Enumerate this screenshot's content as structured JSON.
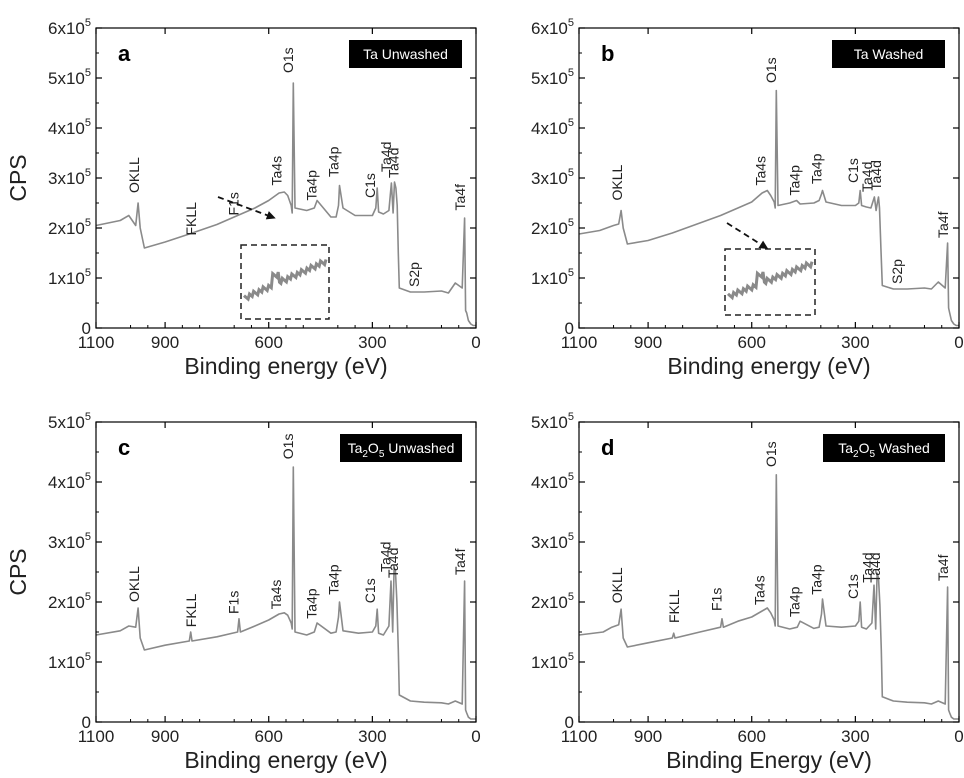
{
  "chart_data": [
    {
      "type": "line",
      "panel": "a",
      "badge": "Ta Unwashed",
      "xlabel": "Binding energy (eV)",
      "ylabel": "CPS",
      "xlim": [
        1100,
        0
      ],
      "ylim": [
        0,
        600000
      ],
      "x_ticks": [
        "1100",
        "900",
        "600",
        "300",
        "0"
      ],
      "x_tick_values": [
        1100,
        900,
        600,
        300,
        0
      ],
      "y_ticks": [
        {
          "m": "0",
          "e": ""
        },
        {
          "m": "1x10",
          "e": "5"
        },
        {
          "m": "2x10",
          "e": "5"
        },
        {
          "m": "3x10",
          "e": "5"
        },
        {
          "m": "4x10",
          "e": "5"
        },
        {
          "m": "5x10",
          "e": "5"
        },
        {
          "m": "6x10",
          "e": "5"
        }
      ],
      "y_tick_values": [
        0,
        100000,
        200000,
        300000,
        400000,
        500000,
        600000
      ],
      "series": [
        {
          "x": [
            1100,
            1030,
            1005,
            985,
            978,
            972,
            960,
            900,
            830,
            750,
            690,
            640,
            600,
            570,
            555,
            545,
            535,
            532,
            529,
            524,
            490,
            468,
            460,
            420,
            405,
            398,
            395,
            385,
            350,
            300,
            290,
            286,
            282,
            268,
            252,
            245,
            240,
            236,
            232,
            228,
            225,
            222,
            190,
            150,
            100,
            80,
            60,
            40,
            33,
            30,
            27,
            22,
            15,
            8,
            0
          ],
          "y": [
            205000,
            215000,
            225000,
            205000,
            250000,
            200000,
            160000,
            172000,
            188000,
            207000,
            225000,
            240000,
            255000,
            270000,
            272000,
            265000,
            245000,
            230000,
            490000,
            240000,
            235000,
            240000,
            255000,
            222000,
            222000,
            245000,
            285000,
            240000,
            225000,
            225000,
            240000,
            280000,
            232000,
            228000,
            235000,
            290000,
            230000,
            292000,
            280000,
            245000,
            150000,
            80000,
            72000,
            72000,
            74000,
            70000,
            90000,
            80000,
            220000,
            35000,
            30000,
            15000,
            8000,
            5000,
            5000
          ]
        }
      ],
      "annotations": [
        {
          "text": "OKLL",
          "x": 975,
          "y": 270000
        },
        {
          "text": "FKLL",
          "x": 810,
          "y": 185000
        },
        {
          "text": "F1s",
          "x": 688,
          "y": 225000
        },
        {
          "text": "Ta4s",
          "x": 563,
          "y": 285000
        },
        {
          "text": "O1s",
          "x": 530,
          "y": 510000
        },
        {
          "text": "Ta4p",
          "x": 462,
          "y": 255000
        },
        {
          "text": "Ta4p",
          "x": 398,
          "y": 302000
        },
        {
          "text": "C1s",
          "x": 292,
          "y": 260000
        },
        {
          "text": "Ta4d",
          "x": 246,
          "y": 312000
        },
        {
          "text": "Ta4d",
          "x": 224,
          "y": 300000
        },
        {
          "text": "S2p",
          "x": 165,
          "y": 82000
        },
        {
          "text": "Ta4f",
          "x": 32,
          "y": 235000
        }
      ]
    },
    {
      "type": "line",
      "panel": "b",
      "badge": "Ta Washed",
      "xlabel": "Binding energy (eV)",
      "ylabel": "",
      "xlim": [
        1100,
        0
      ],
      "ylim": [
        0,
        600000
      ],
      "x_ticks": [
        "1100",
        "900",
        "600",
        "300",
        "0"
      ],
      "x_tick_values": [
        1100,
        900,
        600,
        300,
        0
      ],
      "y_ticks": [
        {
          "m": "0",
          "e": ""
        },
        {
          "m": "1x10",
          "e": "5"
        },
        {
          "m": "2x10",
          "e": "5"
        },
        {
          "m": "3x10",
          "e": "5"
        },
        {
          "m": "4x10",
          "e": "5"
        },
        {
          "m": "5x10",
          "e": "5"
        },
        {
          "m": "6x10",
          "e": "5"
        }
      ],
      "y_tick_values": [
        0,
        100000,
        200000,
        300000,
        400000,
        500000,
        600000
      ],
      "series": [
        {
          "x": [
            1100,
            1040,
            1000,
            985,
            978,
            972,
            960,
            900,
            830,
            750,
            690,
            640,
            600,
            570,
            555,
            545,
            535,
            532,
            529,
            524,
            490,
            470,
            460,
            420,
            405,
            398,
            395,
            385,
            340,
            300,
            290,
            286,
            282,
            268,
            255,
            245,
            240,
            236,
            233,
            230,
            226,
            222,
            190,
            150,
            100,
            80,
            60,
            40,
            33,
            30,
            27,
            22,
            15,
            8,
            0
          ],
          "y": [
            188000,
            195000,
            205000,
            208000,
            235000,
            200000,
            168000,
            175000,
            190000,
            210000,
            225000,
            240000,
            252000,
            270000,
            275000,
            265000,
            252000,
            240000,
            475000,
            245000,
            250000,
            255000,
            248000,
            250000,
            255000,
            268000,
            275000,
            252000,
            245000,
            245000,
            250000,
            275000,
            245000,
            242000,
            240000,
            262000,
            235000,
            252000,
            262000,
            240000,
            160000,
            85000,
            78000,
            78000,
            80000,
            78000,
            92000,
            80000,
            170000,
            40000,
            30000,
            15000,
            8000,
            5000,
            5000
          ]
        }
      ],
      "annotations": [
        {
          "text": "OKLL",
          "x": 975,
          "y": 255000
        },
        {
          "text": "Ta4s",
          "x": 560,
          "y": 285000
        },
        {
          "text": "O1s",
          "x": 530,
          "y": 490000
        },
        {
          "text": "Ta4p",
          "x": 462,
          "y": 265000
        },
        {
          "text": "Ta4p",
          "x": 398,
          "y": 288000
        },
        {
          "text": "C1s",
          "x": 292,
          "y": 290000
        },
        {
          "text": "Ta4d",
          "x": 252,
          "y": 272000
        },
        {
          "text": "Ta4d",
          "x": 226,
          "y": 275000
        },
        {
          "text": "S2p",
          "x": 165,
          "y": 88000
        },
        {
          "text": "Ta4f",
          "x": 32,
          "y": 180000
        }
      ]
    },
    {
      "type": "line",
      "panel": "c",
      "badge_html": "Ta<tspan baseline-shift=\"sub\" font-size=\"10\">2</tspan>O<tspan baseline-shift=\"sub\" font-size=\"10\">5</tspan> Unwashed",
      "badge_parts": [
        "Ta",
        "2",
        "O",
        "5",
        " Unwashed"
      ],
      "xlabel": "Binding energy (eV)",
      "ylabel": "CPS",
      "xlim": [
        1100,
        0
      ],
      "ylim": [
        0,
        500000
      ],
      "x_ticks": [
        "1100",
        "900",
        "600",
        "300",
        "0"
      ],
      "x_tick_values": [
        1100,
        900,
        600,
        300,
        0
      ],
      "y_ticks": [
        {
          "m": "0",
          "e": ""
        },
        {
          "m": "1x10",
          "e": "5"
        },
        {
          "m": "2x10",
          "e": "5"
        },
        {
          "m": "3x10",
          "e": "5"
        },
        {
          "m": "4x10",
          "e": "5"
        },
        {
          "m": "5x10",
          "e": "5"
        }
      ],
      "y_tick_values": [
        0,
        100000,
        200000,
        300000,
        400000,
        500000
      ],
      "series": [
        {
          "x": [
            1100,
            1030,
            1005,
            985,
            978,
            972,
            960,
            900,
            830,
            826,
            822,
            750,
            690,
            686,
            682,
            640,
            600,
            570,
            555,
            545,
            535,
            532,
            529,
            524,
            490,
            468,
            460,
            420,
            405,
            398,
            395,
            385,
            340,
            300,
            290,
            286,
            282,
            268,
            252,
            246,
            241,
            237,
            233,
            229,
            225,
            222,
            190,
            150,
            100,
            80,
            60,
            40,
            33,
            30,
            27,
            22,
            15,
            8,
            0
          ],
          "y": [
            145000,
            152000,
            160000,
            158000,
            190000,
            140000,
            120000,
            128000,
            135000,
            150000,
            135000,
            142000,
            150000,
            172000,
            150000,
            160000,
            170000,
            180000,
            182000,
            178000,
            165000,
            155000,
            425000,
            150000,
            145000,
            150000,
            165000,
            148000,
            150000,
            175000,
            200000,
            152000,
            148000,
            150000,
            160000,
            188000,
            148000,
            145000,
            160000,
            235000,
            150000,
            258000,
            250000,
            200000,
            120000,
            45000,
            35000,
            33000,
            32000,
            30000,
            35000,
            30000,
            235000,
            20000,
            15000,
            8000,
            5000,
            5000,
            5000
          ]
        }
      ],
      "annotations": [
        {
          "text": "OKLL",
          "x": 975,
          "y": 200000
        },
        {
          "text": "FKLL",
          "x": 810,
          "y": 158000
        },
        {
          "text": "F1s",
          "x": 688,
          "y": 180000
        },
        {
          "text": "Ta4s",
          "x": 565,
          "y": 188000
        },
        {
          "text": "O1s",
          "x": 530,
          "y": 438000
        },
        {
          "text": "Ta4p",
          "x": 462,
          "y": 172000
        },
        {
          "text": "Ta4p",
          "x": 398,
          "y": 212000
        },
        {
          "text": "C1s",
          "x": 292,
          "y": 198000
        },
        {
          "text": "Ta4d",
          "x": 247,
          "y": 250000
        },
        {
          "text": "Ta4d",
          "x": 226,
          "y": 240000
        },
        {
          "text": "Ta4f",
          "x": 32,
          "y": 245000
        }
      ]
    },
    {
      "type": "line",
      "panel": "d",
      "badge_parts": [
        "Ta",
        "2",
        "O",
        "5",
        " Washed"
      ],
      "xlabel": "Binding Energy (eV)",
      "ylabel": "",
      "xlim": [
        1100,
        0
      ],
      "ylim": [
        0,
        500000
      ],
      "x_ticks": [
        "1100",
        "900",
        "600",
        "300",
        "0"
      ],
      "x_tick_values": [
        1100,
        900,
        600,
        300,
        0
      ],
      "y_ticks": [
        {
          "m": "0",
          "e": ""
        },
        {
          "m": "1x10",
          "e": "5"
        },
        {
          "m": "2x10",
          "e": "5"
        },
        {
          "m": "3x10",
          "e": "5"
        },
        {
          "m": "4x10",
          "e": "5"
        },
        {
          "m": "5x10",
          "e": "5"
        }
      ],
      "y_tick_values": [
        0,
        100000,
        200000,
        300000,
        400000,
        500000
      ],
      "series": [
        {
          "x": [
            1100,
            1030,
            1005,
            985,
            978,
            972,
            960,
            900,
            830,
            826,
            822,
            750,
            690,
            686,
            682,
            640,
            600,
            570,
            555,
            545,
            535,
            532,
            529,
            524,
            490,
            468,
            460,
            420,
            405,
            398,
            395,
            385,
            340,
            300,
            290,
            286,
            282,
            268,
            252,
            246,
            241,
            237,
            233,
            229,
            225,
            222,
            190,
            150,
            100,
            80,
            60,
            40,
            33,
            30,
            27,
            22,
            15,
            8,
            0
          ],
          "y": [
            145000,
            150000,
            158000,
            162000,
            188000,
            140000,
            125000,
            132000,
            140000,
            148000,
            140000,
            150000,
            158000,
            172000,
            158000,
            168000,
            175000,
            185000,
            190000,
            182000,
            170000,
            160000,
            412000,
            160000,
            155000,
            158000,
            168000,
            156000,
            158000,
            180000,
            205000,
            160000,
            158000,
            160000,
            168000,
            200000,
            158000,
            155000,
            165000,
            228000,
            155000,
            248000,
            240000,
            195000,
            120000,
            42000,
            35000,
            33000,
            32000,
            30000,
            35000,
            30000,
            225000,
            20000,
            15000,
            8000,
            5000,
            5000,
            5000
          ]
        }
      ],
      "annotations": [
        {
          "text": "OKLL",
          "x": 975,
          "y": 198000
        },
        {
          "text": "FKLL",
          "x": 810,
          "y": 165000
        },
        {
          "text": "F1s",
          "x": 688,
          "y": 185000
        },
        {
          "text": "Ta4s",
          "x": 563,
          "y": 195000
        },
        {
          "text": "O1s",
          "x": 530,
          "y": 425000
        },
        {
          "text": "Ta4p",
          "x": 462,
          "y": 175000
        },
        {
          "text": "Ta4p",
          "x": 398,
          "y": 212000
        },
        {
          "text": "C1s",
          "x": 292,
          "y": 205000
        },
        {
          "text": "Ta4d",
          "x": 250,
          "y": 232000
        },
        {
          "text": "Ta4d",
          "x": 228,
          "y": 232000
        },
        {
          "text": "Ta4f",
          "x": 32,
          "y": 235000
        }
      ]
    }
  ],
  "colors": {
    "trace": "#8a8a8a",
    "axis": "#000000",
    "badge_bg": "#000000",
    "badge_fg": "#ffffff",
    "inset": "#8a8a8a"
  }
}
